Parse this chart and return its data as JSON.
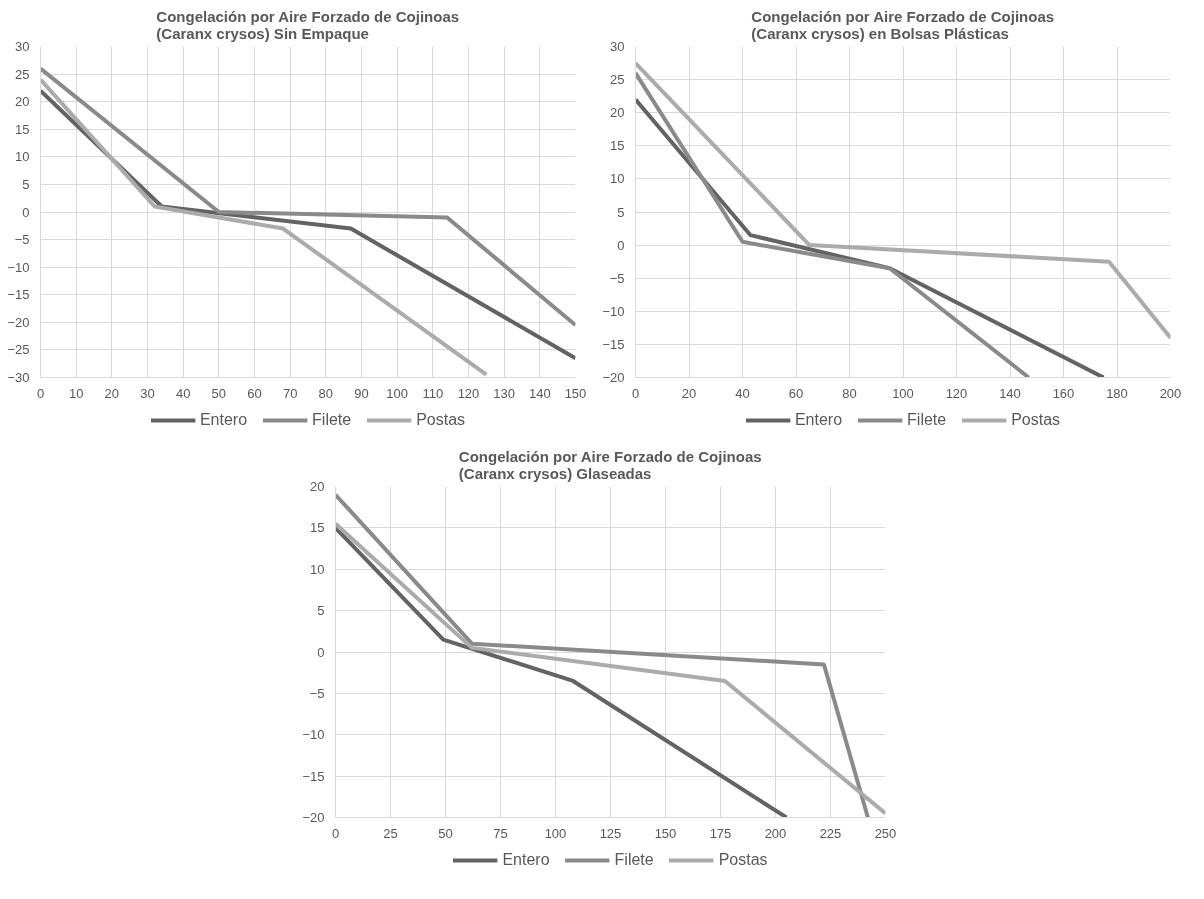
{
  "chart_data": [
    {
      "type": "line",
      "title": "Congelación por Aire Forzado de Cojinoas (Caranx crysos) Sin Empaque",
      "xlim": [
        0,
        150
      ],
      "xticks": [
        0,
        10,
        20,
        30,
        40,
        50,
        60,
        70,
        80,
        90,
        100,
        110,
        120,
        130,
        140,
        150
      ],
      "ylim": [
        -30,
        30
      ],
      "yticks": [
        -30,
        -25,
        -20,
        -15,
        -10,
        -5,
        0,
        5,
        10,
        15,
        20,
        25,
        30
      ],
      "grid": true,
      "legend": "bottom",
      "marker": "none",
      "line_style": "solid",
      "series": [
        {
          "name": "Entero",
          "color": "#636363",
          "x": [
            0,
            34,
            87,
            150
          ],
          "values": [
            22,
            1,
            -3,
            -26.5
          ]
        },
        {
          "name": "Filete",
          "color": "#8a8a8a",
          "x": [
            0,
            50,
            114,
            150
          ],
          "values": [
            26,
            0,
            -1,
            -20.5
          ]
        },
        {
          "name": "Postas",
          "color": "#ababab",
          "x": [
            0,
            32,
            68,
            125
          ],
          "values": [
            24,
            1,
            -3,
            -29.5
          ]
        }
      ]
    },
    {
      "type": "line",
      "title": "Congelación por Aire Forzado de Cojinoas (Caranx crysos) en Bolsas Plásticas",
      "xlim": [
        0,
        200
      ],
      "xticks": [
        0,
        20,
        40,
        60,
        80,
        100,
        120,
        140,
        160,
        180,
        200
      ],
      "ylim": [
        -20,
        30
      ],
      "yticks": [
        -20,
        -15,
        -10,
        -5,
        0,
        5,
        10,
        15,
        20,
        25,
        30
      ],
      "grid": true,
      "legend": "bottom",
      "marker": "none",
      "line_style": "solid",
      "series": [
        {
          "name": "Entero",
          "color": "#636363",
          "x": [
            0,
            43,
            95,
            175
          ],
          "values": [
            22,
            1.5,
            -3.5,
            -20
          ]
        },
        {
          "name": "Filete",
          "color": "#8a8a8a",
          "x": [
            0,
            40,
            95,
            147
          ],
          "values": [
            26,
            0.5,
            -3.5,
            -20
          ]
        },
        {
          "name": "Postas",
          "color": "#ababab",
          "x": [
            0,
            65,
            177,
            200
          ],
          "values": [
            27.5,
            0,
            -2.5,
            -14
          ]
        }
      ]
    },
    {
      "type": "line",
      "title": "Congelación por Aire Forzado de Cojinoas (Caranx crysos) Glaseadas",
      "xlim": [
        0,
        250
      ],
      "xticks": [
        0,
        25,
        50,
        75,
        100,
        125,
        150,
        175,
        200,
        225,
        250
      ],
      "ylim": [
        -20,
        20
      ],
      "yticks": [
        -20,
        -15,
        -10,
        -5,
        0,
        5,
        10,
        15,
        20
      ],
      "grid": true,
      "legend": "bottom",
      "marker": "none",
      "line_style": "solid",
      "series": [
        {
          "name": "Entero",
          "color": "#636363",
          "x": [
            0,
            49,
            108,
            205
          ],
          "values": [
            15,
            1.5,
            -3.5,
            -20
          ]
        },
        {
          "name": "Filete",
          "color": "#8a8a8a",
          "x": [
            0,
            62,
            222,
            242
          ],
          "values": [
            19,
            1,
            -1.5,
            -20
          ]
        },
        {
          "name": "Postas",
          "color": "#ababab",
          "x": [
            0,
            62,
            177,
            250
          ],
          "values": [
            15.5,
            0.5,
            -3.5,
            -19.5
          ]
        }
      ]
    }
  ]
}
